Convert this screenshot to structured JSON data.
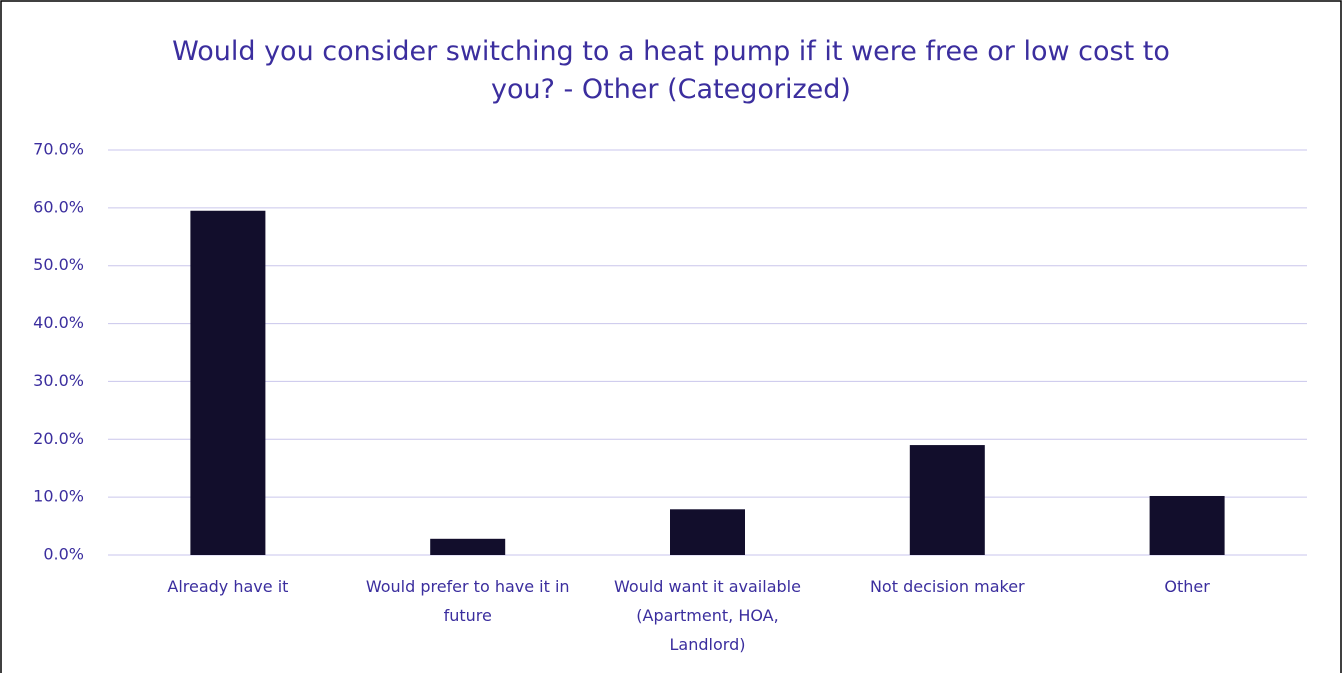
{
  "chart_data": {
    "type": "bar",
    "title": "Would you consider switching to a heat pump if it were free or low cost to you? - Other (Categorized)",
    "categories": [
      "Already have it",
      "Would prefer to have it in future",
      "Would want it available (Apartment, HOA, Landlord)",
      "Not decision maker",
      "Other"
    ],
    "values": [
      59.5,
      2.8,
      7.9,
      19.0,
      10.2
    ],
    "color": "#120e2c",
    "ylim": [
      0,
      70
    ],
    "yticks": [
      {
        "value": 0,
        "label": "0.0%"
      },
      {
        "value": 10,
        "label": "10.0%"
      },
      {
        "value": 20,
        "label": "20.0%"
      },
      {
        "value": 30,
        "label": "30.0%"
      },
      {
        "value": 40,
        "label": "40.0%"
      },
      {
        "value": 50,
        "label": "50.0%"
      },
      {
        "value": 60,
        "label": "60.0%"
      },
      {
        "value": 70,
        "label": "70.0%"
      }
    ],
    "grid": true
  }
}
